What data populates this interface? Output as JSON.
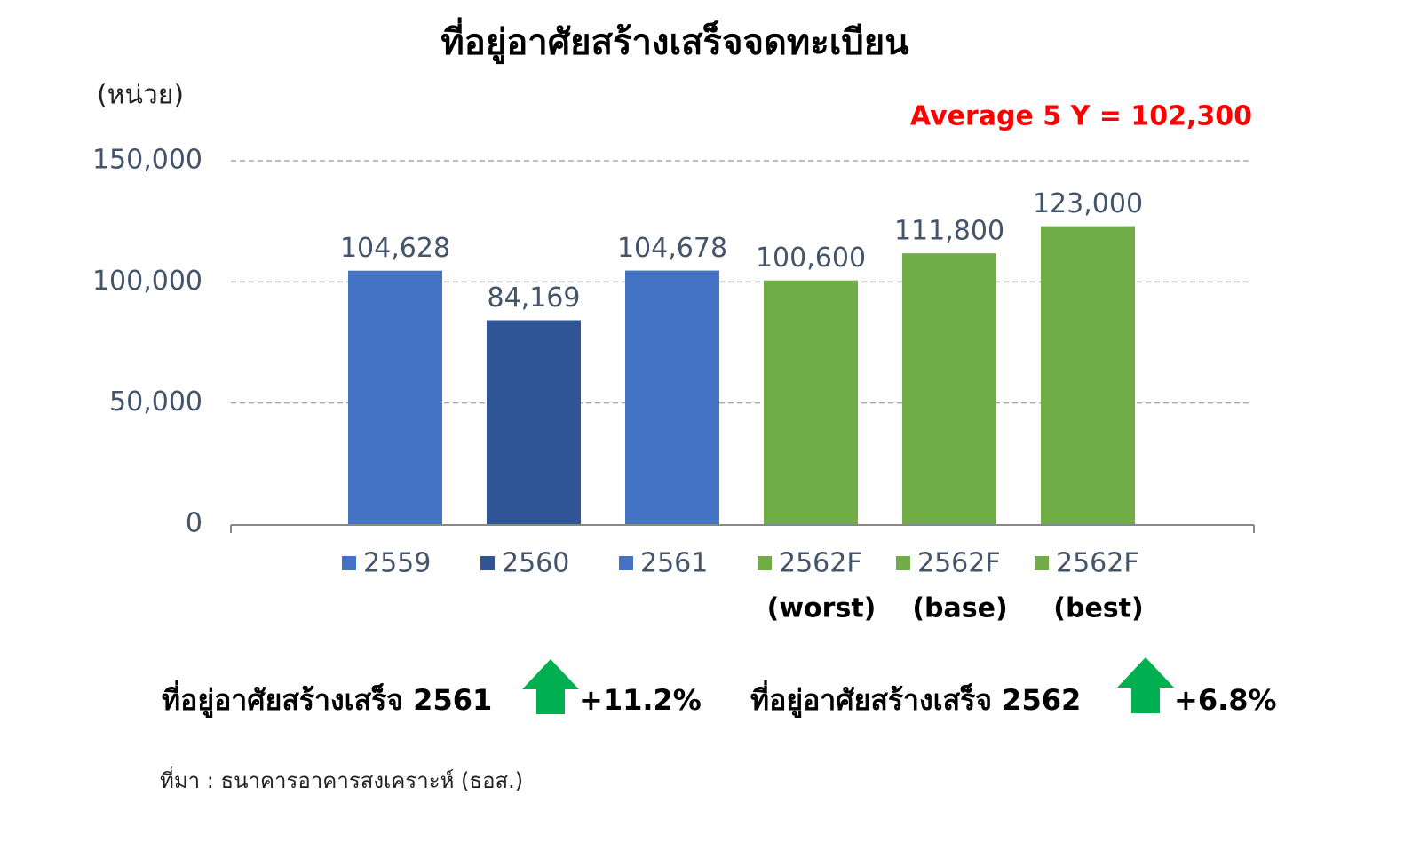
{
  "chart_data": {
    "type": "bar",
    "title": "ที่อยู่อาศัยสร้างเสร็จจดทะเบียน",
    "y_unit": "(หน่วย)",
    "annotation": "Average 5 Y = 102,300",
    "annotation_color": "#ff0000",
    "categories": [
      "2559",
      "2560",
      "2561",
      "2562F",
      "2562F",
      "2562F"
    ],
    "category_notes": [
      null,
      null,
      null,
      "(worst)",
      "(base)",
      "(best)"
    ],
    "values": [
      104628,
      84169,
      104678,
      100600,
      111800,
      123000
    ],
    "value_labels": [
      "104,628",
      "84,169",
      "104,678",
      "100,600",
      "111,800",
      "123,000"
    ],
    "colors": [
      "#4472c4",
      "#2f5597",
      "#4472c4",
      "#70ad47",
      "#70ad47",
      "#70ad47"
    ],
    "ylim": [
      0,
      150000
    ],
    "yticks": [
      0,
      {
        "value": 50000,
        "label": "50,000"
      },
      {
        "value": 100000,
        "label": "100,000"
      },
      {
        "value": 150000,
        "label": "150,000"
      }
    ],
    "grid": true
  },
  "notes": [
    {
      "text": "ที่อยู่อาศัยสร้างเสร็จ 2561",
      "change": "+11.2%"
    },
    {
      "text": "ที่อยู่อาศัยสร้างเสร็จ 2562",
      "change": "+6.8%"
    }
  ],
  "source": "ที่มา :  ธนาคารอาคารสงเคราะห์ (ธอส.)"
}
